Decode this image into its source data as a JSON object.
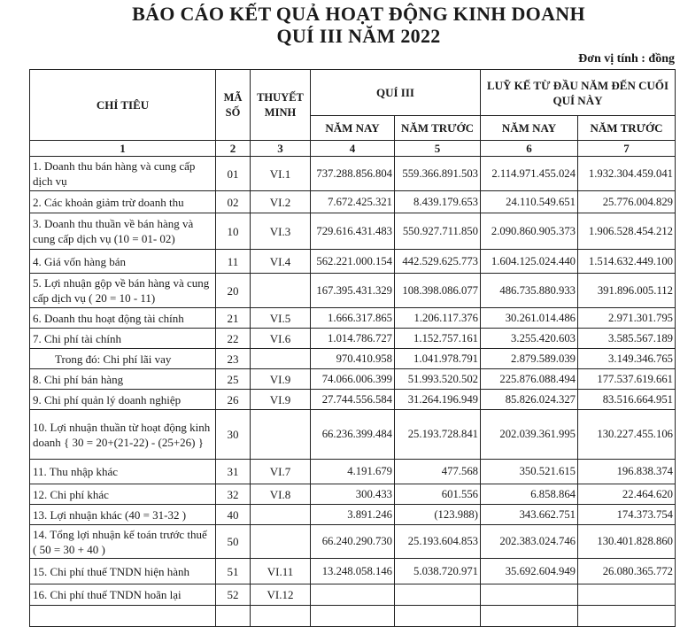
{
  "title": {
    "line1": "BÁO CÁO KẾT QUẢ HOẠT ĐỘNG KINH DOANH",
    "line2": "QUÍ III NĂM 2022"
  },
  "unit": "Đơn vị tính : đồng",
  "header": {
    "chi_tieu": "CHỈ TIÊU",
    "ma_so": "MÃ SỐ",
    "thuyet_minh": "THUYẾT MINH",
    "quarter": "QUÍ III",
    "cumulative": "LUỸ KẾ TỪ ĐẦU NĂM ĐẾN CUỐI QUÍ NÀY",
    "this_year": "NĂM NAY",
    "last_year": "NĂM TRƯỚC",
    "col_numbers": [
      "1",
      "2",
      "3",
      "4",
      "5",
      "6",
      "7"
    ]
  },
  "rows": [
    {
      "label": "1. Doanh thu bán hàng và cung cấp dịch vụ",
      "code": "01",
      "note": "VI.1",
      "q_now": "737.288.856.804",
      "q_prev": "559.366.891.503",
      "c_now": "2.114.971.455.024",
      "c_prev": "1.932.304.459.041"
    },
    {
      "label": "2. Các khoản giảm trừ  doanh thu",
      "code": "02",
      "note": "VI.2",
      "q_now": "7.672.425.321",
      "q_prev": "8.439.179.653",
      "c_now": "24.110.549.651",
      "c_prev": "25.776.004.829"
    },
    {
      "label": "3.  Doanh thu thuần về bán hàng và cung cấp dịch vụ (10 = 01- 02)",
      "code": "10",
      "note": "VI.3",
      "q_now": "729.616.431.483",
      "q_prev": "550.927.711.850",
      "c_now": "2.090.860.905.373",
      "c_prev": "1.906.528.454.212"
    },
    {
      "label": "4. Giá vốn hàng bán",
      "code": "11",
      "note": "VI.4",
      "q_now": "562.221.000.154",
      "q_prev": "442.529.625.773",
      "c_now": "1.604.125.024.440",
      "c_prev": "1.514.632.449.100"
    },
    {
      "label": "5.  Lợi nhuận gộp về bán hàng và cung cấp  dịch vụ ( 20 = 10 - 11)",
      "code": "20",
      "note": "",
      "q_now": "167.395.431.329",
      "q_prev": "108.398.086.077",
      "c_now": "486.735.880.933",
      "c_prev": "391.896.005.112"
    },
    {
      "label": "6.  Doanh thu hoạt động tài chính",
      "code": "21",
      "note": "VI.5",
      "q_now": "1.666.317.865",
      "q_prev": "1.206.117.376",
      "c_now": "30.261.014.486",
      "c_prev": "2.971.301.795"
    },
    {
      "label": "7. Chi phí tài chính",
      "code": "22",
      "note": "VI.6",
      "q_now": "1.014.786.727",
      "q_prev": "1.152.757.161",
      "c_now": "3.255.420.603",
      "c_prev": "3.585.567.189"
    },
    {
      "label": "Trong đó: Chi phí lãi vay",
      "code": "23",
      "note": "",
      "q_now": "970.410.958",
      "q_prev": "1.041.978.791",
      "c_now": "2.879.589.039",
      "c_prev": "3.149.346.765",
      "sub": true
    },
    {
      "label": "8. Chi phí bán hàng",
      "code": "25",
      "note": "VI.9",
      "q_now": "74.066.006.399",
      "q_prev": "51.993.520.502",
      "c_now": "225.876.088.494",
      "c_prev": "177.537.619.661"
    },
    {
      "label": "9. Chi phí quản lý doanh nghiệp",
      "code": "26",
      "note": "VI.9",
      "q_now": "27.744.556.584",
      "q_prev": "31.264.196.949",
      "c_now": "85.826.024.327",
      "c_prev": "83.516.664.951"
    },
    {
      "label": "10. Lợi nhuận thuần từ hoạt động kinh doanh { 30 = 20+(21-22) - (25+26) }",
      "code": "30",
      "note": "",
      "q_now": "66.236.399.484",
      "q_prev": "25.193.728.841",
      "c_now": "202.039.361.995",
      "c_prev": "130.227.455.106"
    },
    {
      "label": "11. Thu nhập khác",
      "code": "31",
      "note": "VI.7",
      "q_now": "4.191.679",
      "q_prev": "477.568",
      "c_now": "350.521.615",
      "c_prev": "196.838.374"
    },
    {
      "label": "12. Chi phí khác",
      "code": "32",
      "note": "VI.8",
      "q_now": "300.433",
      "q_prev": "601.556",
      "c_now": "6.858.864",
      "c_prev": "22.464.620"
    },
    {
      "label": "13. Lợi nhuận khác (40 = 31-32 )",
      "code": "40",
      "note": "",
      "q_now": "3.891.246",
      "q_prev": "(123.988)",
      "c_now": "343.662.751",
      "c_prev": "174.373.754"
    },
    {
      "label": "14. Tổng lợi nhuận kế toán trước thuế ( 50 = 30 + 40 )",
      "code": "50",
      "note": "",
      "q_now": "66.240.290.730",
      "q_prev": "25.193.604.853",
      "c_now": "202.383.024.746",
      "c_prev": "130.401.828.860"
    },
    {
      "label": "15. Chi phí thuế TNDN hiện hành",
      "code": "51",
      "note": "VI.11",
      "q_now": "13.248.058.146",
      "q_prev": "5.038.720.971",
      "c_now": "35.692.604.949",
      "c_prev": "26.080.365.772"
    },
    {
      "label": "16. Chi phí thuế TNDN hoãn lại",
      "code": "52",
      "note": "VI.12",
      "q_now": "",
      "q_prev": "",
      "c_now": "",
      "c_prev": ""
    }
  ]
}
